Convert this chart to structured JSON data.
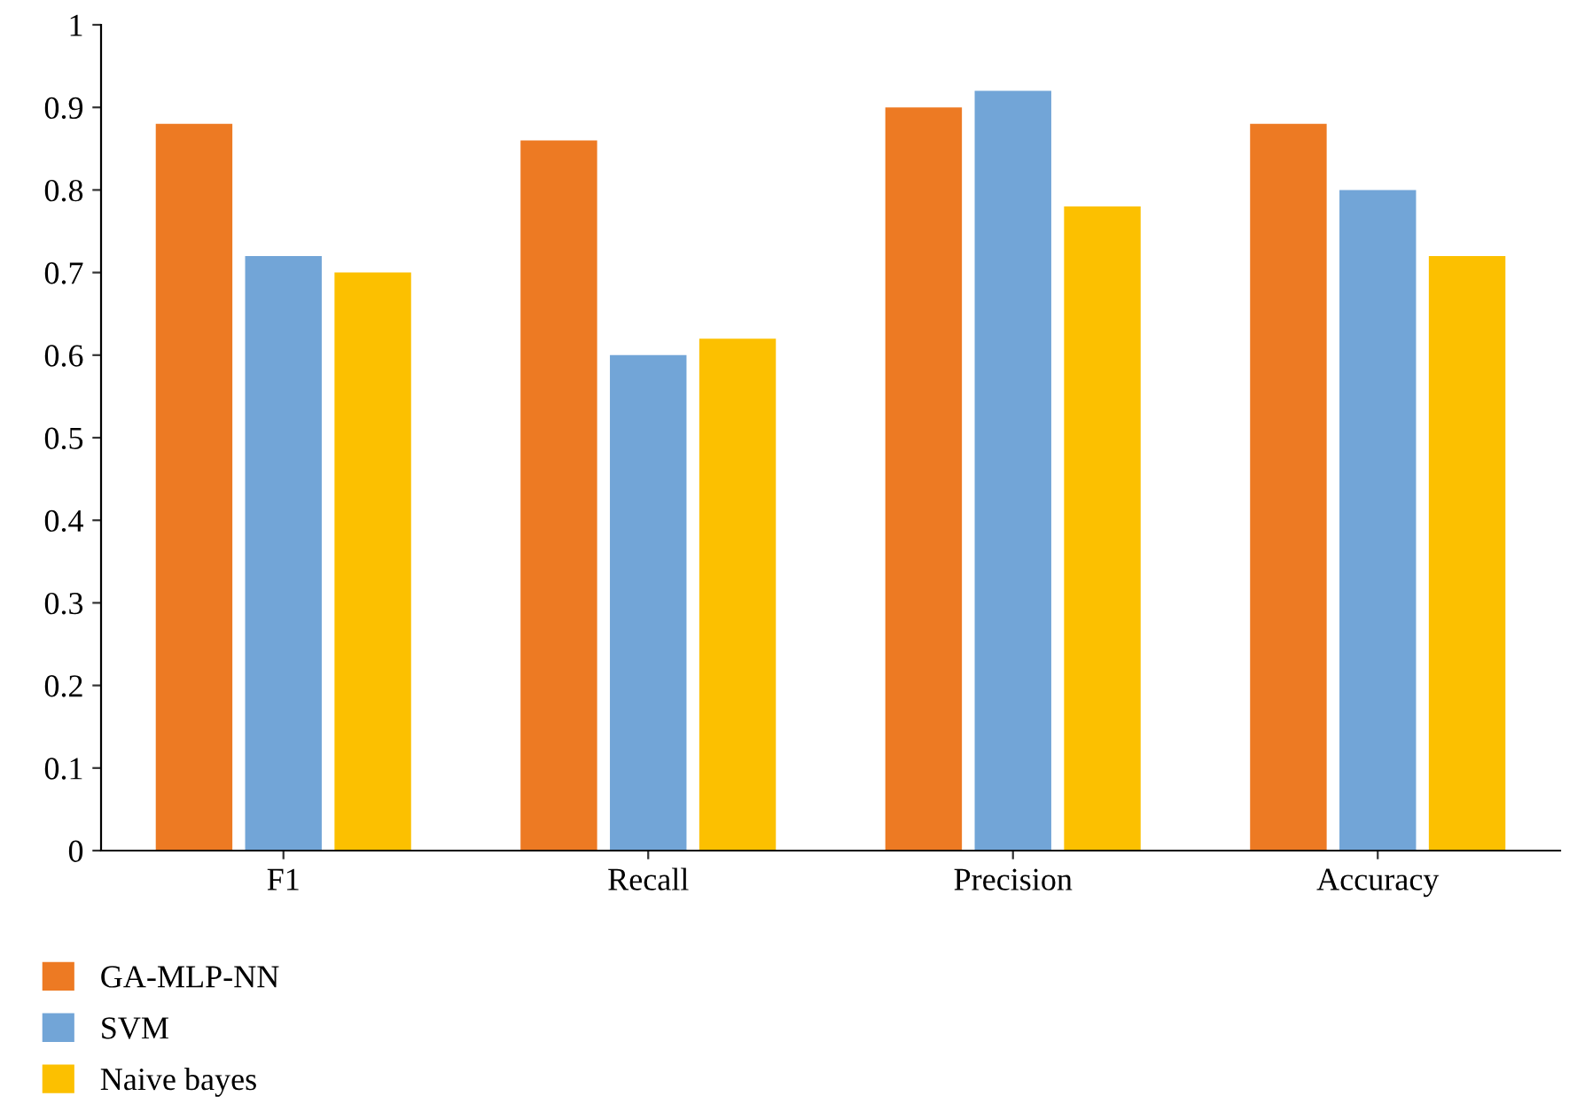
{
  "chart_data": {
    "type": "bar",
    "categories": [
      "F1",
      "Recall",
      "Precision",
      "Accuracy"
    ],
    "series": [
      {
        "name": "GA-MLP-NN",
        "color": "#ed7a23",
        "values": [
          0.88,
          0.86,
          0.9,
          0.88
        ]
      },
      {
        "name": "SVM",
        "color": "#72a5d7",
        "values": [
          0.72,
          0.6,
          0.92,
          0.8
        ]
      },
      {
        "name": "Naive bayes",
        "color": "#fcc000",
        "values": [
          0.7,
          0.62,
          0.78,
          0.72
        ]
      }
    ],
    "ylim": [
      0,
      1
    ],
    "yticks": [
      0,
      0.1,
      0.2,
      0.3,
      0.4,
      0.5,
      0.6,
      0.7,
      0.8,
      0.9,
      1
    ],
    "grid": false,
    "legend": "bottom left"
  }
}
